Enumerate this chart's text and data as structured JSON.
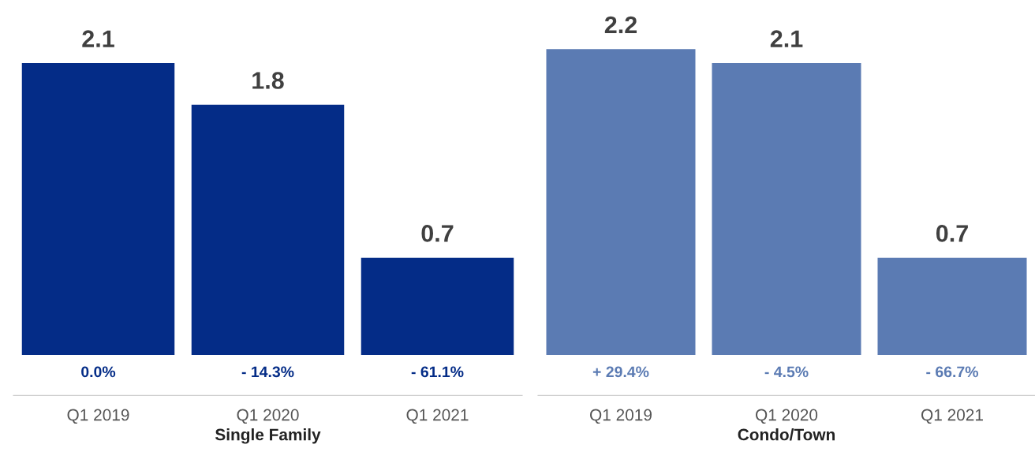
{
  "chart_data": [
    {
      "type": "bar",
      "xlabel": "Single Family",
      "categories": [
        "Q1 2019",
        "Q1 2020",
        "Q1 2021"
      ],
      "values": [
        2.1,
        1.8,
        0.7
      ],
      "color": "#042c87",
      "data_labels": true,
      "grid": false,
      "legend": false,
      "annotations": [
        "0.0%",
        "- 14.3%",
        "- 61.1%"
      ]
    },
    {
      "type": "bar",
      "xlabel": "Condo/Town",
      "categories": [
        "Q1 2019",
        "Q1 2020",
        "Q1 2021"
      ],
      "values": [
        2.2,
        2.1,
        0.7
      ],
      "color": "#5b7bb3",
      "data_labels": true,
      "grid": false,
      "legend": false,
      "annotations": [
        "+ 29.4%",
        "- 4.5%",
        "- 66.7%"
      ]
    }
  ]
}
